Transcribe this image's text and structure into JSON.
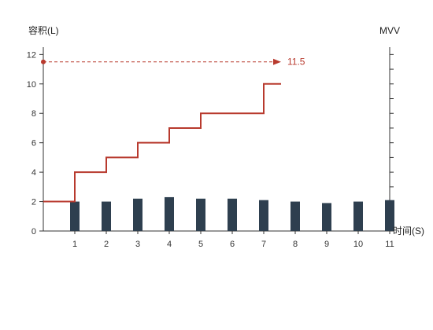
{
  "chart_data": {
    "type": "bar+line",
    "x": [
      0,
      1,
      2,
      3,
      4,
      5,
      6,
      7,
      8,
      9,
      10,
      11
    ],
    "x_tick_labels": [
      "1",
      "2",
      "3",
      "4",
      "5",
      "6",
      "7",
      "8",
      "9",
      "10",
      "11"
    ],
    "y_left_ticks": [
      "0",
      "2",
      "4",
      "6",
      "8",
      "10",
      "12"
    ],
    "y_left_label": "容积(L)",
    "y_right_label": "MVV",
    "x_label": "时间(S)",
    "xlim": [
      0,
      11
    ],
    "ylim": [
      0,
      12.5
    ],
    "series": [
      {
        "type": "bar",
        "x": [
          1,
          2,
          3,
          4,
          5,
          6,
          7,
          8,
          9,
          10,
          11
        ],
        "values": [
          2.0,
          2.0,
          2.2,
          2.3,
          2.2,
          2.2,
          2.1,
          2.0,
          1.9,
          2.0,
          2.1
        ]
      },
      {
        "type": "step",
        "x": [
          0,
          1,
          2,
          3,
          4,
          5,
          6,
          7,
          7.55
        ],
        "values": [
          2,
          4,
          5,
          6,
          7,
          8,
          8,
          10,
          10
        ]
      }
    ],
    "reference_line": {
      "y": 11.5,
      "x_end": 7.55,
      "label": "11.5"
    },
    "colors": {
      "bar": "#2e3f4f",
      "line": "#b83a2e",
      "axis": "#333333"
    }
  }
}
